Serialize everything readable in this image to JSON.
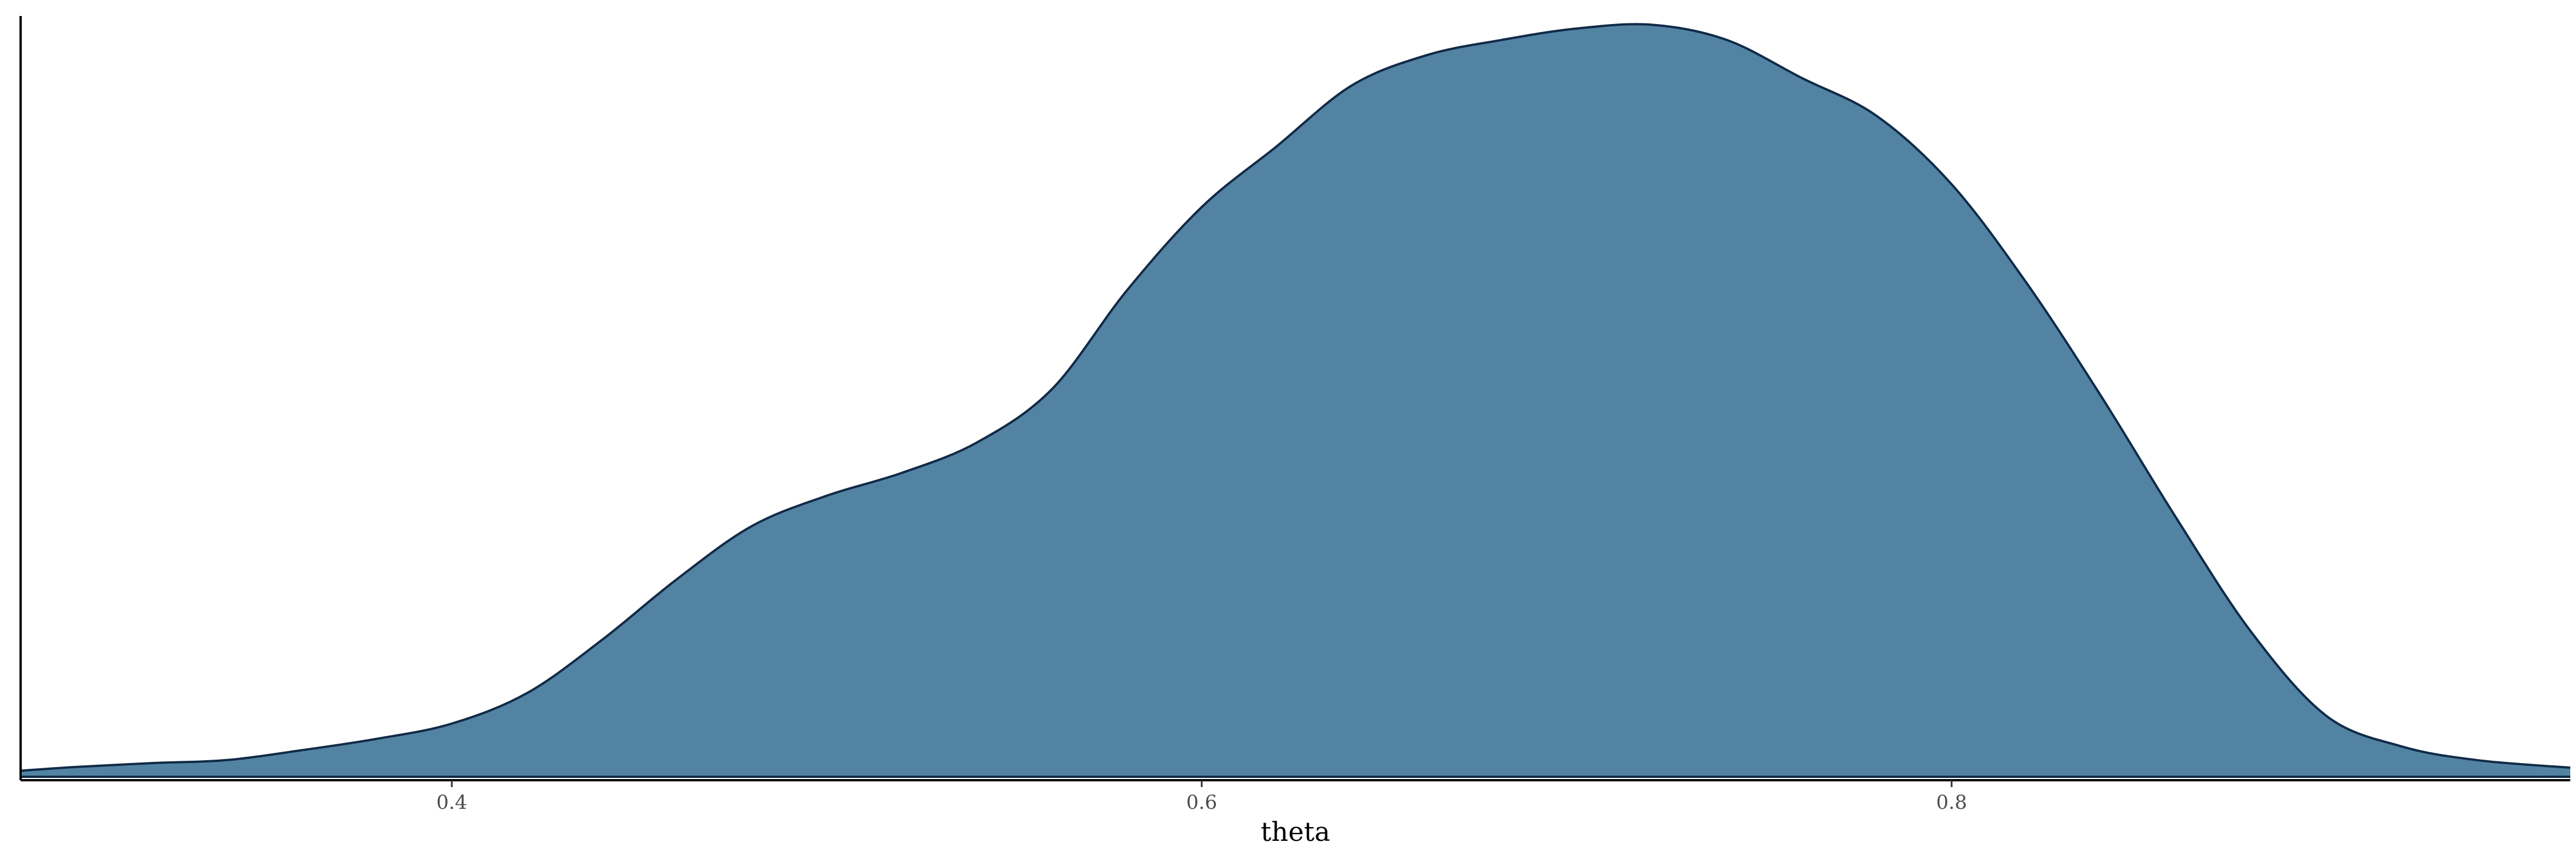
{
  "chart_data": {
    "type": "area",
    "xlabel": "theta",
    "ylabel": "",
    "xlim": [
      0.285,
      0.965
    ],
    "ylim": [
      0,
      1.0
    ],
    "x_ticks": [
      0.4,
      0.6,
      0.8
    ],
    "x_tick_labels": [
      "0.4",
      "0.6",
      "0.8"
    ],
    "grid": false,
    "legend": "none",
    "fill_color": "#5283A2",
    "line_color": "#102A47",
    "series": [
      {
        "x": [
          0.285,
          0.3,
          0.32,
          0.34,
          0.36,
          0.38,
          0.4,
          0.42,
          0.44,
          0.46,
          0.48,
          0.5,
          0.52,
          0.54,
          0.56,
          0.58,
          0.6,
          0.62,
          0.64,
          0.66,
          0.68,
          0.7,
          0.72,
          0.74,
          0.76,
          0.78,
          0.8,
          0.82,
          0.84,
          0.86,
          0.88,
          0.9,
          0.92,
          0.94,
          0.965
        ],
        "y": [
          0.008,
          0.013,
          0.018,
          0.022,
          0.035,
          0.05,
          0.07,
          0.11,
          0.18,
          0.26,
          0.33,
          0.37,
          0.4,
          0.44,
          0.51,
          0.64,
          0.75,
          0.83,
          0.91,
          0.95,
          0.97,
          0.985,
          0.99,
          0.97,
          0.92,
          0.87,
          0.78,
          0.65,
          0.5,
          0.34,
          0.19,
          0.08,
          0.04,
          0.022,
          0.012
        ]
      }
    ]
  }
}
